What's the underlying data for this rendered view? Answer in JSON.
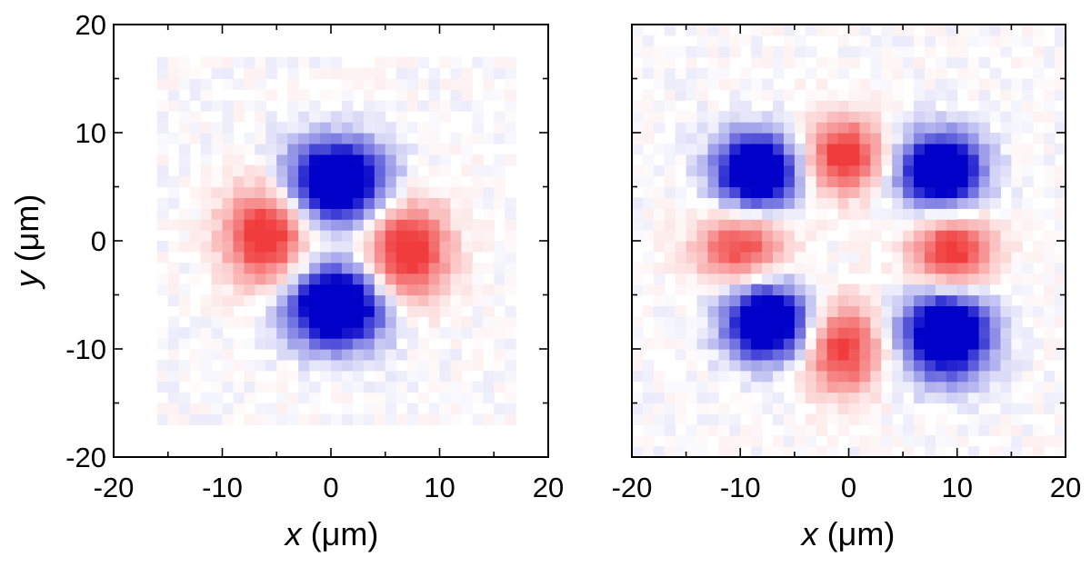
{
  "chart_data": [
    {
      "type": "heatmap",
      "panel": "left",
      "xlabel": {
        "var": "x",
        "unit": " (μm)"
      },
      "ylabel": {
        "var": "y",
        "unit": " (μm)"
      },
      "xlim": [
        -20,
        20
      ],
      "ylim": [
        -20,
        20
      ],
      "xticks": [
        "-20",
        "-10",
        "0",
        "10",
        "20"
      ],
      "yticks": [
        "-20",
        "-10",
        "0",
        "10",
        "20"
      ],
      "data_extent": [
        -16,
        17,
        -17,
        17
      ],
      "pattern": "four-lobe",
      "grid": false,
      "lobes": [
        {
          "sign": "negative",
          "x": 0.5,
          "y": 5.5,
          "sx": 3.2,
          "sy": 2.6
        },
        {
          "sign": "negative",
          "x": 0.5,
          "y": -6.0,
          "sx": 3.2,
          "sy": 2.6
        },
        {
          "sign": "positive",
          "x": -6.0,
          "y": 0.5,
          "sx": 2.6,
          "sy": 3.2,
          "amp": 0.75
        },
        {
          "sign": "positive",
          "x": 7.0,
          "y": -1.0,
          "sx": 2.6,
          "sy": 3.2,
          "amp": 0.75
        }
      ]
    },
    {
      "type": "heatmap",
      "panel": "right",
      "xlabel": {
        "var": "x",
        "unit": " (μm)"
      },
      "ylabel": {
        "var": "",
        "unit": ""
      },
      "xlim": [
        -20,
        20
      ],
      "ylim": [
        -20,
        20
      ],
      "xticks": [
        "-20",
        "-10",
        "0",
        "10",
        "20"
      ],
      "yticks": [],
      "data_extent": [
        -20,
        20,
        -20,
        20
      ],
      "pattern": "eight-lobe",
      "grid": false,
      "lobes": [
        {
          "sign": "negative",
          "x": -8.5,
          "y": 6.5,
          "sx": 2.6,
          "sy": 2.4
        },
        {
          "sign": "negative",
          "x": 8.5,
          "y": 6.5,
          "sx": 2.6,
          "sy": 2.4
        },
        {
          "sign": "negative",
          "x": -7.5,
          "y": -7.5,
          "sx": 2.6,
          "sy": 2.4
        },
        {
          "sign": "negative",
          "x": 9.0,
          "y": -8.5,
          "sx": 2.8,
          "sy": 2.8
        },
        {
          "sign": "positive",
          "x": -0.5,
          "y": 8.0,
          "sx": 2.4,
          "sy": 2.4,
          "amp": 0.7
        },
        {
          "sign": "positive",
          "x": -0.5,
          "y": -10.0,
          "sx": 2.4,
          "sy": 2.8,
          "amp": 0.65
        },
        {
          "sign": "positive",
          "x": -10.0,
          "y": -0.5,
          "sx": 2.8,
          "sy": 2.2,
          "amp": 0.6
        },
        {
          "sign": "positive",
          "x": 9.5,
          "y": -1.0,
          "sx": 2.6,
          "sy": 2.4,
          "amp": 0.7
        }
      ]
    }
  ],
  "colors": {
    "negative": "#0000c8",
    "positive": "#f03c3c",
    "background": "#ffffff",
    "frame": "#000000"
  }
}
